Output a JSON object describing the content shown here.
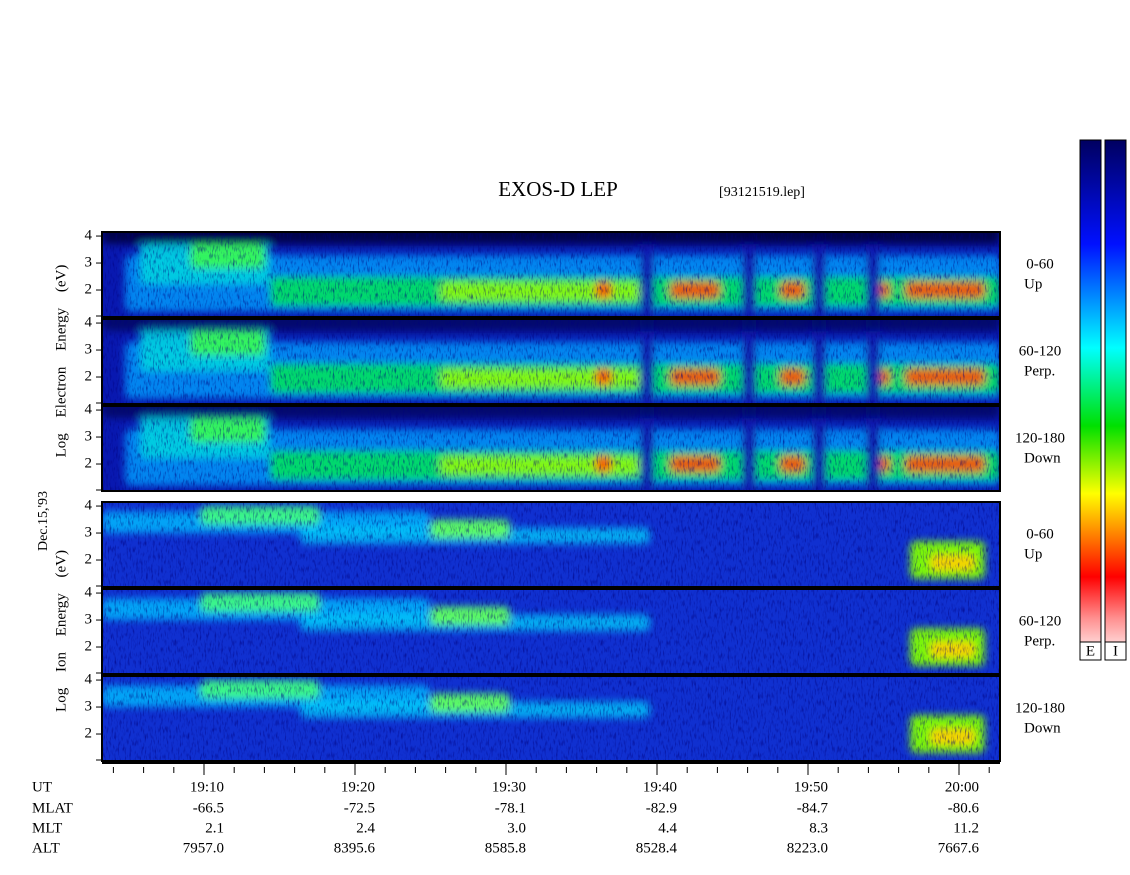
{
  "title": "EXOS-D LEP",
  "file": "[93121519.lep]",
  "date": "Dec.15,'93",
  "electron_label": "Log Electron Energy (eV)",
  "ion_label": "Log Ion Energy (eV)",
  "panels": [
    {
      "species": "electron",
      "range": "0-60",
      "direction": "Up"
    },
    {
      "species": "electron",
      "range": "60-120",
      "direction": "Perp."
    },
    {
      "species": "electron",
      "range": "120-180",
      "direction": "Down"
    },
    {
      "species": "ion",
      "range": "0-60",
      "direction": "Up"
    },
    {
      "species": "ion",
      "range": "60-120",
      "direction": "Perp."
    },
    {
      "species": "ion",
      "range": "120-180",
      "direction": "Down"
    }
  ],
  "ylim": [
    1,
    4.15
  ],
  "yticks": [
    2,
    3,
    4
  ],
  "colorbar_labels": [
    "E",
    "I"
  ],
  "ephemeris": [
    {
      "label": "UT",
      "values": [
        "19:10",
        "19:20",
        "19:30",
        "19:40",
        "19:50",
        "20:00"
      ]
    },
    {
      "label": "MLAT",
      "values": [
        "-66.5",
        "-72.5",
        "-78.1",
        "-82.9",
        "-84.7",
        "-80.6"
      ]
    },
    {
      "label": "MLT",
      "values": [
        "2.1",
        "2.4",
        "3.0",
        "4.4",
        "8.3",
        "11.2"
      ]
    },
    {
      "label": "ALT",
      "values": [
        "7957.0",
        "8395.6",
        "8585.8",
        "8528.4",
        "8223.0",
        "7667.6"
      ]
    }
  ]
}
